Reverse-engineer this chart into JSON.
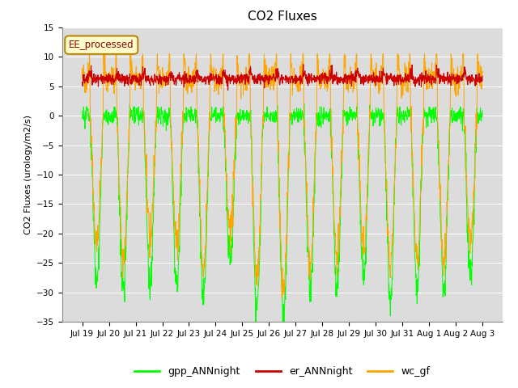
{
  "title": "CO2 Fluxes",
  "ylabel": "CO2 Fluxes (urology/m2/s)",
  "xlabel": "",
  "ylim": [
    -35,
    15
  ],
  "yticks": [
    -35,
    -30,
    -25,
    -20,
    -15,
    -10,
    -5,
    0,
    5,
    10,
    15
  ],
  "annotation_text": "EE_processed",
  "legend_labels": [
    "gpp_ANNnight",
    "er_ANNnight",
    "wc_gf"
  ],
  "colors": {
    "gpp_ANNnight": "#00FF00",
    "er_ANNnight": "#CC0000",
    "wc_gf": "#FFA500"
  },
  "bg_color": "#DCDCDC",
  "n_days": 15,
  "points_per_day": 96,
  "title_fontsize": 11,
  "label_fontsize": 8,
  "tick_fontsize": 7.5,
  "legend_fontsize": 9
}
